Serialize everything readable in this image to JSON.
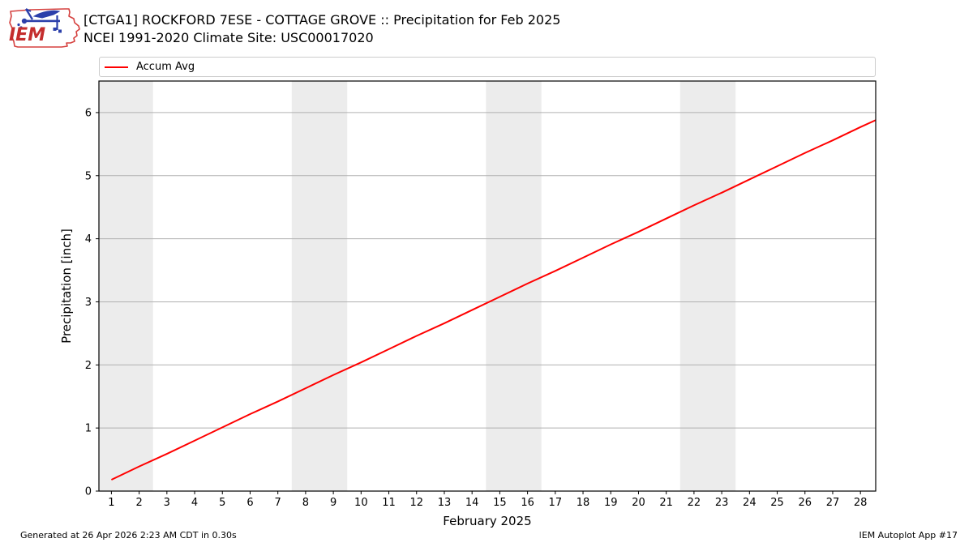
{
  "header": {
    "title_line1": "[CTGA1] ROCKFORD 7ESE - COTTAGE GROVE :: Precipitation for Feb 2025",
    "title_line2": "NCEI 1991-2020 Climate Site: USC00017020",
    "logo_text": "IEM"
  },
  "legend": {
    "items": [
      {
        "label": "Accum Avg",
        "color": "#ff0000"
      }
    ]
  },
  "footer": {
    "left": "Generated at 26 Apr 2026 2:23 AM CDT in 0.30s",
    "right": "IEM Autoplot App #17"
  },
  "chart_data": {
    "type": "line",
    "title": "[CTGA1] ROCKFORD 7ESE - COTTAGE GROVE :: Precipitation for Feb 2025",
    "subtitle": "NCEI 1991-2020 Climate Site: USC00017020",
    "xlabel": "February 2025",
    "ylabel": "Precipitation [inch]",
    "x": [
      1,
      2,
      3,
      4,
      5,
      6,
      7,
      8,
      9,
      10,
      11,
      12,
      13,
      14,
      15,
      16,
      17,
      18,
      19,
      20,
      21,
      22,
      23,
      24,
      25,
      26,
      27,
      28
    ],
    "series": [
      {
        "name": "Accum Avg",
        "color": "#ff0000",
        "values": [
          0.18,
          0.39,
          0.59,
          0.8,
          1.01,
          1.22,
          1.42,
          1.63,
          1.84,
          2.04,
          2.25,
          2.46,
          2.66,
          2.87,
          3.08,
          3.29,
          3.49,
          3.7,
          3.91,
          4.11,
          4.32,
          4.53,
          4.73,
          4.94,
          5.15,
          5.36,
          5.56,
          5.77
        ]
      }
    ],
    "right_edge_point": {
      "x": 28.55,
      "value": 5.88
    },
    "xlim": [
      0.55,
      28.55
    ],
    "ylim": [
      0,
      6.5
    ],
    "yticks": [
      0,
      1,
      2,
      3,
      4,
      5,
      6
    ],
    "xticks": [
      1,
      2,
      3,
      4,
      5,
      6,
      7,
      8,
      9,
      10,
      11,
      12,
      13,
      14,
      15,
      16,
      17,
      18,
      19,
      20,
      21,
      22,
      23,
      24,
      25,
      26,
      27,
      28
    ],
    "grid": "horizontal",
    "grid_color": "#b0b0b0",
    "weekend_bands": [
      [
        0.55,
        2.5
      ],
      [
        7.5,
        9.5
      ],
      [
        14.5,
        16.5
      ],
      [
        21.5,
        23.5
      ]
    ],
    "band_color": "#ececec",
    "legend_position": "top-outside",
    "line_width": 2
  },
  "logo_colors": {
    "outline": "#d5403e",
    "text": "#c42e2e",
    "vane": "#2b3faa"
  }
}
